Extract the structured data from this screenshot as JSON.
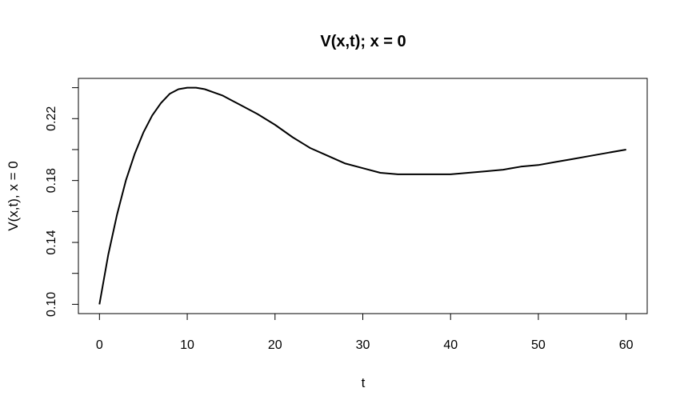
{
  "chart_data": {
    "type": "line",
    "title": "V(x,t); x = 0",
    "xlabel": "t",
    "ylabel": "V(x,t), x = 0",
    "xlim": [
      -2.4,
      62.4
    ],
    "ylim": [
      0.094,
      0.246
    ],
    "x_ticks": [
      0,
      10,
      20,
      30,
      40,
      50,
      60
    ],
    "y_ticks": [
      0.1,
      0.12,
      0.14,
      0.16,
      0.18,
      0.2,
      0.22,
      0.24
    ],
    "y_tick_labels": [
      "0.10",
      "",
      "0.14",
      "",
      "0.18",
      "",
      "0.22",
      ""
    ],
    "grid": false,
    "legend": "none",
    "line_color": "#000000",
    "series": [
      {
        "x": [
          0,
          1,
          2,
          3,
          4,
          5,
          6,
          7,
          8,
          9,
          10,
          11,
          12,
          13,
          14,
          15,
          16,
          18,
          20,
          22,
          24,
          26,
          28,
          30,
          32,
          34,
          36,
          38,
          40,
          42,
          44,
          46,
          48,
          50,
          52,
          54,
          56,
          58,
          60
        ],
        "y": [
          0.1,
          0.132,
          0.158,
          0.18,
          0.197,
          0.211,
          0.222,
          0.23,
          0.236,
          0.239,
          0.24,
          0.24,
          0.239,
          0.237,
          0.235,
          0.232,
          0.229,
          0.223,
          0.216,
          0.208,
          0.201,
          0.196,
          0.191,
          0.188,
          0.185,
          0.184,
          0.184,
          0.184,
          0.184,
          0.185,
          0.186,
          0.187,
          0.189,
          0.19,
          0.192,
          0.194,
          0.196,
          0.198,
          0.2
        ]
      }
    ]
  }
}
